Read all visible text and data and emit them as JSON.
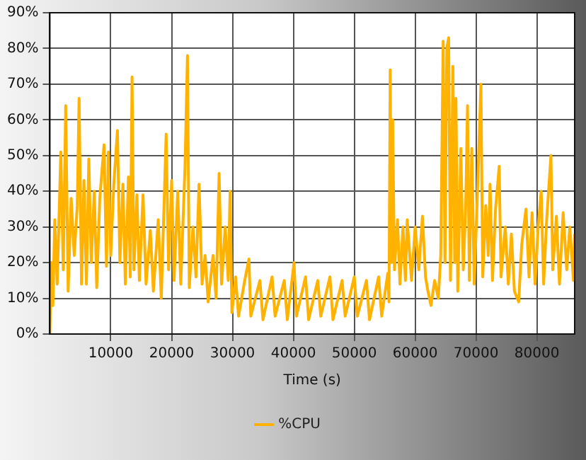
{
  "chart_data": {
    "type": "line",
    "xlabel": "Time (s)",
    "xlim": [
      0,
      86200
    ],
    "xticks": [
      10000,
      20000,
      30000,
      40000,
      50000,
      60000,
      70000,
      80000
    ],
    "ylim": [
      0,
      90
    ],
    "yticks": [
      {
        "value": 0,
        "label": "0%"
      },
      {
        "value": 10,
        "label": "10%"
      },
      {
        "value": 20,
        "label": "20%"
      },
      {
        "value": 30,
        "label": "30%"
      },
      {
        "value": 40,
        "label": "40%"
      },
      {
        "value": 50,
        "label": "50%"
      },
      {
        "value": 60,
        "label": "60%"
      },
      {
        "value": 70,
        "label": "70%"
      },
      {
        "value": 80,
        "label": "80%"
      },
      {
        "value": 90,
        "label": "90%"
      }
    ],
    "grid": true,
    "legend": "bottom",
    "marker": "none",
    "line_style": "solid",
    "series": [
      {
        "name": "%CPU",
        "color": "#ffb300",
        "x": [
          0,
          200,
          500,
          800,
          1200,
          1800,
          2200,
          2600,
          3000,
          3500,
          4000,
          4500,
          4800,
          5200,
          5600,
          6000,
          6400,
          6800,
          7300,
          7700,
          8200,
          8900,
          9300,
          9600,
          10000,
          10500,
          11100,
          11500,
          12000,
          12400,
          12900,
          13200,
          13500,
          13800,
          14300,
          14700,
          15300,
          15800,
          16500,
          17000,
          17800,
          18300,
          19100,
          19500,
          20000,
          20400,
          21000,
          21500,
          22200,
          22600,
          22900,
          23500,
          24000,
          24500,
          25000,
          25500,
          26000,
          26800,
          27300,
          27800,
          28200,
          28800,
          29300,
          29600,
          29900,
          30500,
          31000,
          32000,
          32700,
          33000,
          34500,
          35000,
          36500,
          37000,
          38500,
          39000,
          40100,
          40500,
          42000,
          42500,
          44000,
          44500,
          46000,
          46500,
          48000,
          48500,
          50000,
          50500,
          52000,
          52500,
          54000,
          54500,
          55500,
          55700,
          55900,
          56100,
          56300,
          56600,
          57100,
          57500,
          58000,
          58400,
          58700,
          59400,
          60000,
          60600,
          61200,
          61700,
          62100,
          62600,
          63200,
          63800,
          64200,
          64600,
          64900,
          65200,
          65500,
          65800,
          66200,
          66500,
          66700,
          67000,
          67500,
          67900,
          68300,
          68600,
          68900,
          69300,
          69700,
          70200,
          70800,
          71100,
          71600,
          72000,
          72300,
          72700,
          73200,
          73800,
          74100,
          74800,
          75300,
          75800,
          76300,
          77000,
          77500,
          78200,
          78700,
          79200,
          79700,
          80200,
          80700,
          81100,
          81600,
          82300,
          82600,
          83200,
          83700,
          84300,
          84900,
          85400,
          86000,
          86200
        ],
        "values": [
          0,
          20,
          8,
          32,
          14,
          51,
          18,
          64,
          12,
          38,
          22,
          36,
          66,
          14,
          43,
          14,
          49,
          20,
          40,
          13,
          38,
          53,
          19,
          51,
          22,
          42,
          57,
          20,
          42,
          14,
          44,
          16,
          72,
          18,
          39,
          15,
          39,
          14,
          29,
          12,
          32,
          10,
          56,
          18,
          43,
          15,
          40,
          14,
          47,
          78,
          13,
          30,
          16,
          42,
          14,
          22,
          9,
          22,
          10,
          45,
          14,
          30,
          15,
          40,
          6,
          16,
          5,
          15,
          21,
          5,
          15,
          4,
          16,
          5,
          15,
          4,
          20,
          5,
          16,
          4,
          15,
          5,
          16,
          4,
          15,
          5,
          16,
          5,
          15,
          4,
          16,
          5,
          17,
          9,
          74,
          20,
          60,
          18,
          32,
          14,
          30,
          15,
          32,
          15,
          30,
          18,
          33,
          16,
          12,
          8,
          15,
          10,
          22,
          82,
          20,
          80,
          83,
          15,
          75,
          20,
          66,
          12,
          52,
          18,
          36,
          64,
          15,
          52,
          14,
          38,
          70,
          16,
          36,
          22,
          42,
          15,
          35,
          47,
          16,
          30,
          14,
          28,
          12,
          9,
          25,
          35,
          16,
          34,
          14,
          30,
          40,
          14,
          32,
          50,
          18,
          33,
          14,
          34,
          18,
          30,
          15,
          28
        ]
      }
    ]
  }
}
